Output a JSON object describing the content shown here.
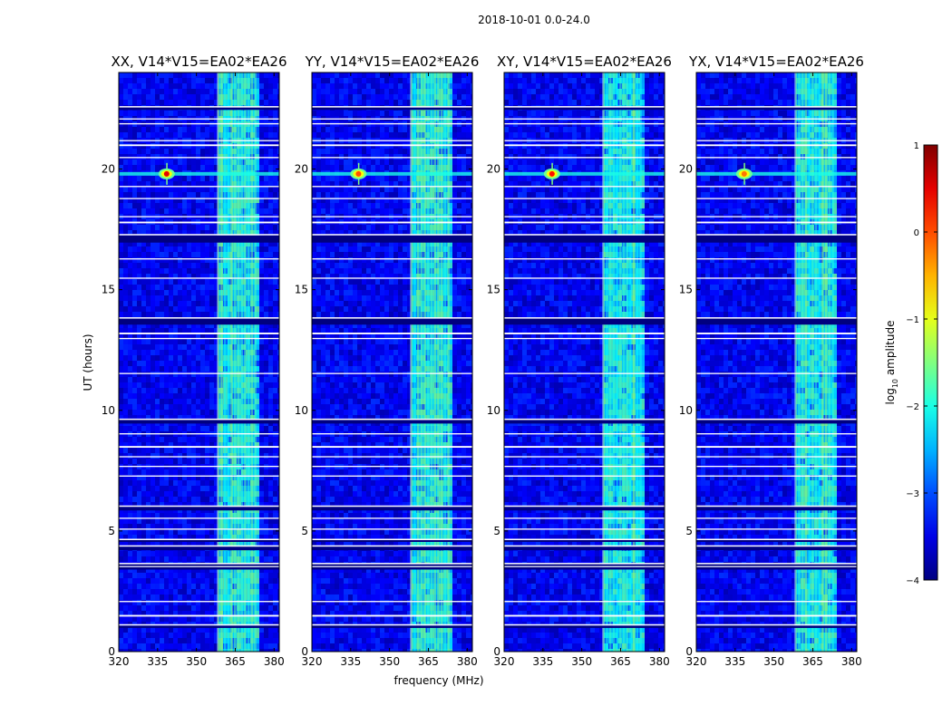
{
  "chart_data": {
    "type": "heatmap",
    "title": "2018-10-01 0.0-24.0",
    "xlabel": "frequency (MHz)",
    "ylabel": "UT (hours)",
    "xlim": [
      320,
      382
    ],
    "ylim": [
      0,
      24
    ],
    "xticks": [
      320,
      335,
      350,
      365,
      380
    ],
    "yticks": [
      0,
      5,
      10,
      15,
      20
    ],
    "colorbar": {
      "label": "log10 amplitude",
      "label_base": "log",
      "label_sub": "10",
      "label_rest": " amplitude",
      "range": [
        -4,
        1
      ],
      "ticks": [
        1,
        0,
        -1,
        -2,
        -3,
        -4
      ],
      "tick_labels": [
        "1",
        "0",
        "−1",
        "−2",
        "−3",
        "−4"
      ],
      "colormap": "jet"
    },
    "panels": [
      {
        "name": "XX",
        "title": "XX, V14*V15=EA02*EA26",
        "source_freq_mhz": 338.5,
        "source_ut_hours": 19.8,
        "source_log_amp": 0.5
      },
      {
        "name": "YY",
        "title": "YY, V14*V15=EA02*EA26",
        "source_freq_mhz": 338.0,
        "source_ut_hours": 19.8,
        "source_log_amp": 0.0
      },
      {
        "name": "XY",
        "title": "XY, V14*V15=EA02*EA26",
        "source_freq_mhz": 338.5,
        "source_ut_hours": 19.8,
        "source_log_amp": 0.3
      },
      {
        "name": "YX",
        "title": "YX, V14*V15=EA02*EA26",
        "source_freq_mhz": 338.5,
        "source_ut_hours": 19.8,
        "source_log_amp": -0.2
      }
    ],
    "background_log_amp": -3.4,
    "rfi_band_mhz": [
      358,
      373
    ],
    "flagged_ut_hours": [
      [
        0.98,
        1.08
      ],
      [
        3.4,
        3.5
      ],
      [
        3.55,
        3.62
      ],
      [
        4.2,
        4.35
      ],
      [
        4.55,
        4.62
      ],
      [
        5.85,
        6.0
      ],
      [
        9.45,
        9.6
      ],
      [
        13.55,
        13.8
      ],
      [
        16.95,
        17.25
      ],
      [
        22.45,
        22.55
      ]
    ],
    "gap_ut_hours": [
      [
        1.45,
        1.52
      ],
      [
        2.05,
        2.1
      ],
      [
        5.05,
        5.1
      ],
      [
        5.5,
        5.55
      ],
      [
        7.25,
        7.3
      ],
      [
        7.65,
        7.7
      ],
      [
        8.05,
        8.1
      ],
      [
        8.45,
        8.52
      ],
      [
        9.0,
        9.05
      ],
      [
        11.5,
        11.55
      ],
      [
        12.95,
        13.0
      ],
      [
        13.15,
        13.22
      ],
      [
        15.45,
        15.5
      ],
      [
        16.25,
        16.3
      ],
      [
        17.75,
        17.82
      ],
      [
        18.0,
        18.05
      ],
      [
        18.75,
        18.8
      ],
      [
        19.25,
        19.3
      ],
      [
        20.45,
        20.5
      ],
      [
        20.95,
        21.02
      ],
      [
        21.15,
        21.2
      ],
      [
        21.85,
        21.9
      ],
      [
        22.05,
        22.1
      ]
    ]
  }
}
